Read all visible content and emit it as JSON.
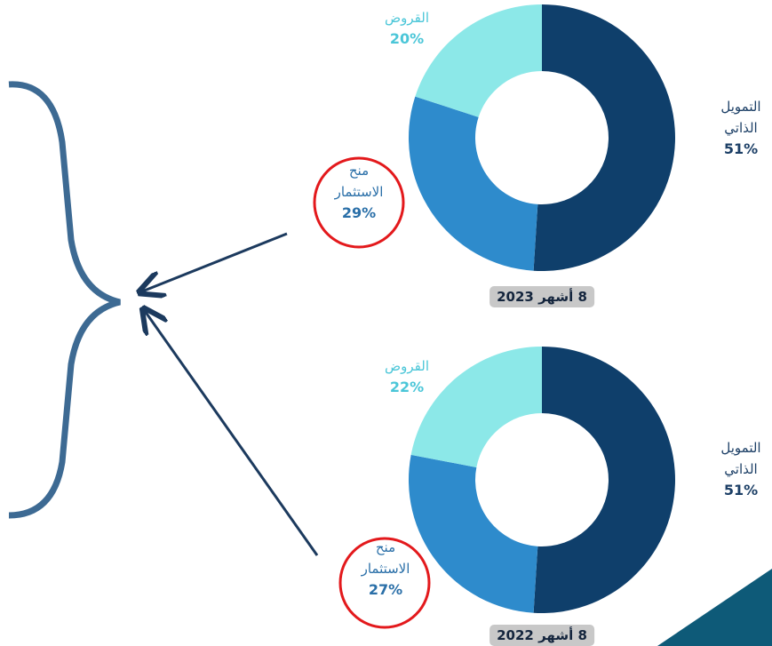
{
  "chart_data": [
    {
      "type": "pie",
      "title": "8 أشهر 2023",
      "categories": [
        "التمويل الذاتي",
        "منح الاستثمار",
        "القروض"
      ],
      "values": [
        51,
        29,
        20
      ],
      "value_labels": [
        "51%",
        "29%",
        "20%"
      ],
      "colors": [
        "#0f3f6b",
        "#2e8bcc",
        "#8ce8e8"
      ]
    },
    {
      "type": "pie",
      "title": "8 أشهر 2022",
      "categories": [
        "التمويل الذاتي",
        "منح الاستثمار",
        "القروض"
      ],
      "values": [
        51,
        27,
        22
      ],
      "value_labels": [
        "51%",
        "27%",
        "22%"
      ],
      "colors": [
        "#0f3f6b",
        "#2e8bcc",
        "#8ce8e8"
      ]
    }
  ]
}
